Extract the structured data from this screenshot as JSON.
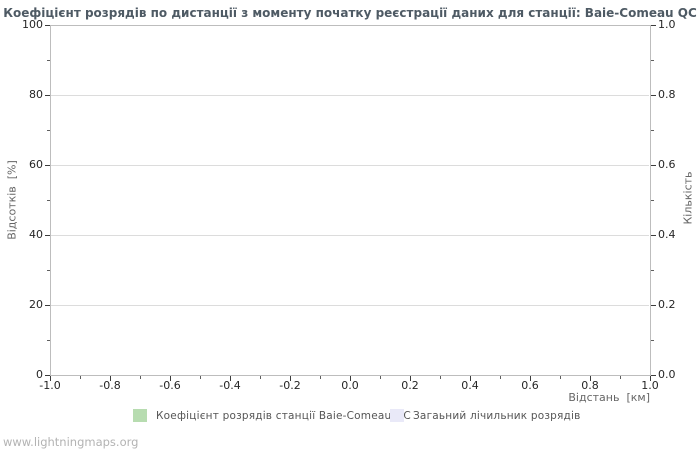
{
  "title": "Коефіцієнт розрядів по дистанції з моменту початку реєстрації даних для станції: Baie-Comeau QC",
  "axes": {
    "left": {
      "title": "Відсотків  [%]",
      "ticks": [
        "100",
        "80",
        "60",
        "40",
        "20",
        "0"
      ]
    },
    "right": {
      "title": "Кількість",
      "ticks": [
        "1.0",
        "0.8",
        "0.6",
        "0.4",
        "0.2",
        "0.0"
      ]
    },
    "bottom": {
      "title": "Відстань  [км]",
      "ticks": [
        "-1.0",
        "-0.8",
        "-0.6",
        "-0.4",
        "-0.2",
        "0.0",
        "0.2",
        "0.4",
        "0.6",
        "0.8",
        "1.0"
      ]
    }
  },
  "legend": {
    "items": [
      {
        "label": "Коефіцієнт розрядів станції Baie-Comeau QC",
        "color": "#b7dcb0"
      },
      {
        "label": "Загаьний лічильник розрядів",
        "color": "#e9e9f8"
      }
    ]
  },
  "footer": {
    "watermark": "www.lightningmaps.org"
  },
  "chart_data": {
    "type": "bar",
    "title": "Коефіцієнт розрядів по дистанції з моменту початку реєстрації даних для станції: Baie-Comeau QC",
    "xlabel": "Відстань [км]",
    "ylabel": "Відсотків [%]",
    "ylabel_right": "Кількість",
    "xlim": [
      -1.0,
      1.0
    ],
    "ylim": [
      0,
      100
    ],
    "ylim_right": [
      0.0,
      1.0
    ],
    "x_tick_step": 0.2,
    "y_tick_step": 20,
    "grid": "horizontal",
    "legend_position": "bottom",
    "series": [
      {
        "name": "Коефіцієнт розрядів станції Baie-Comeau QC",
        "color": "#b7dcb0",
        "x": [],
        "values": []
      },
      {
        "name": "Загаьний лічильник розрядів",
        "color": "#e9e9f8",
        "x": [],
        "values": []
      }
    ]
  }
}
